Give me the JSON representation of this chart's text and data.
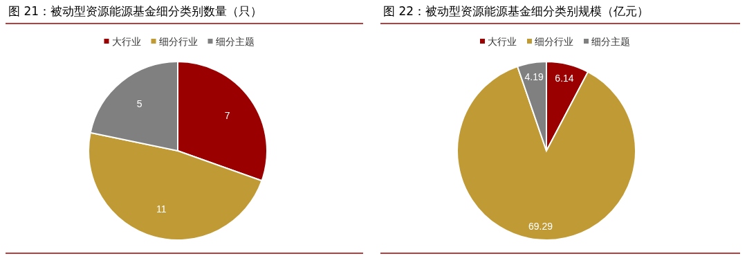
{
  "chart_data": [
    {
      "type": "pie",
      "title": "图 21：被动型资源能源基金细分类别数量（只）",
      "categories": [
        "大行业",
        "细分行业",
        "细分主题"
      ],
      "values": [
        7,
        11,
        5
      ],
      "colors": [
        "#9b0000",
        "#c09a35",
        "#808080"
      ],
      "data_labels": true,
      "legend": "top"
    },
    {
      "type": "pie",
      "title": "图 22：被动型资源能源基金细分类别规模（亿元）",
      "categories": [
        "大行业",
        "细分行业",
        "细分主题"
      ],
      "values": [
        6.14,
        69.29,
        4.19
      ],
      "colors": [
        "#9b0000",
        "#c09a35",
        "#808080"
      ],
      "data_labels": true,
      "legend": "top"
    }
  ]
}
